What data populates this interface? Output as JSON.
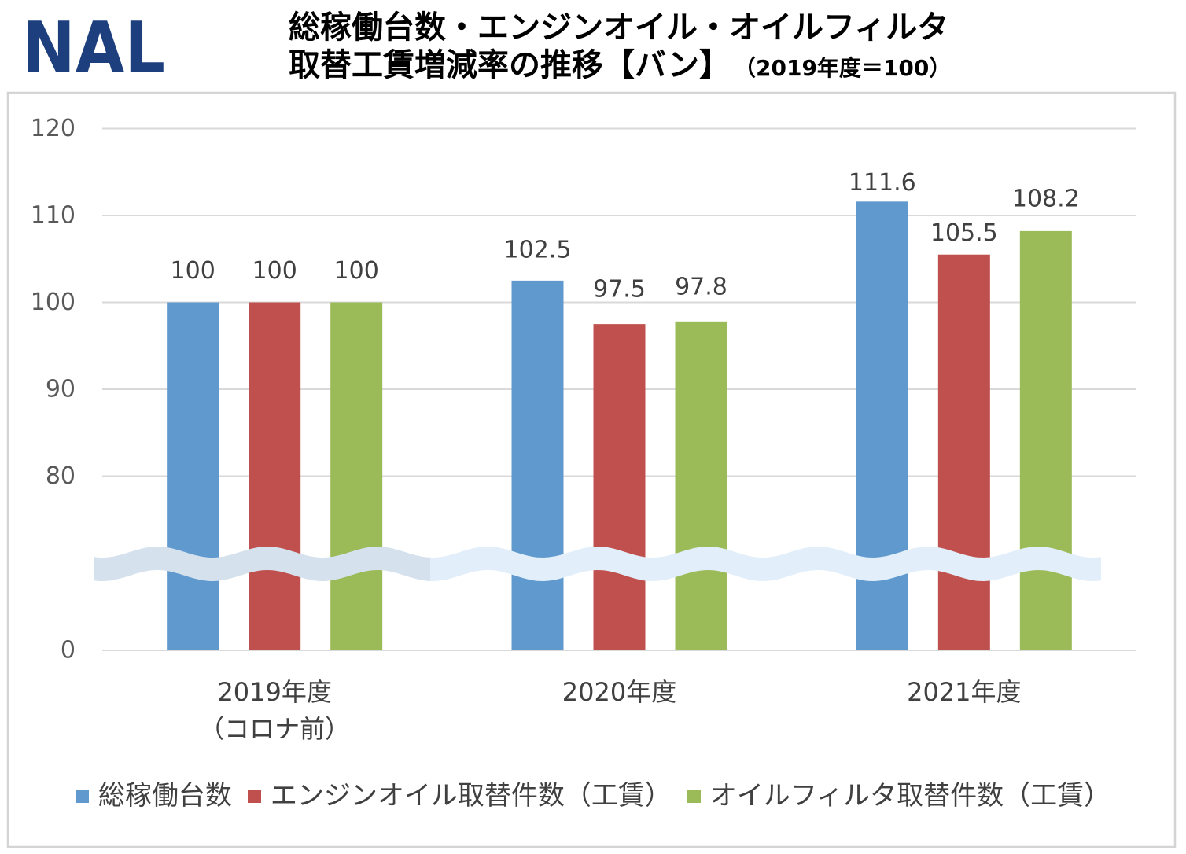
{
  "logo": {
    "text": "NAL"
  },
  "chart_data": {
    "type": "bar",
    "title": [
      "総稼働台数・エンジンオイル・オイルフィルタ",
      "取替工賃増減率の推移【バン】"
    ],
    "title_note": "（2019年度＝100）",
    "categories": [
      [
        "2019年度",
        "（コロナ前）"
      ],
      [
        "2020年度"
      ],
      [
        "2021年度"
      ]
    ],
    "series": [
      {
        "name": "総稼働台数",
        "color": "#5F99CD",
        "values": [
          100,
          102.5,
          111.6
        ]
      },
      {
        "name": "エンジンオイル取替件数（工賃）",
        "color": "#C0504D",
        "values": [
          100,
          97.5,
          105.5
        ]
      },
      {
        "name": "オイルフィルタ取替件数（工賃）",
        "color": "#9BBB59",
        "values": [
          100,
          97.8,
          108.2
        ]
      }
    ],
    "yticks": [
      0,
      80,
      90,
      100,
      110,
      120
    ],
    "ylim": [
      0,
      120
    ],
    "y_axis_break": [
      0,
      70
    ],
    "grid": true,
    "legend": "bottom"
  }
}
